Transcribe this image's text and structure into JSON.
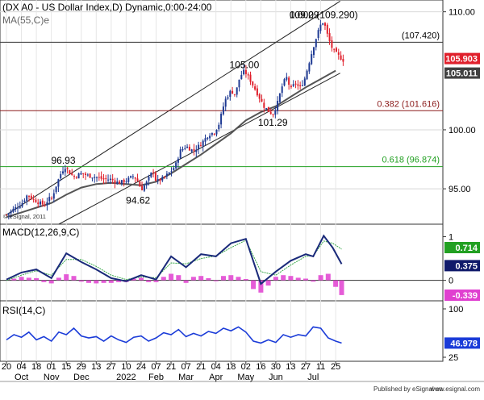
{
  "header": {
    "title": "(DX A0 - US Dollar Index,D) Dynamic,0:00-24:00",
    "ma_label": "MA(55,C)e",
    "copyright": "© eSignal, 2011"
  },
  "footer": {
    "published": "Published by eSignal on",
    "site": "www.esignal.com"
  },
  "colors": {
    "candle_up": "#1f3a93",
    "candle_down": "#e0202c",
    "ma": "#555555",
    "macd": "#1a2a7a",
    "signal": "#3aa84a",
    "histogram": "#e040d0",
    "rsi": "#1a3bd8",
    "fib_red": "#8b1a1a",
    "fib_green": "#22a022",
    "badge_red": "#e0202c",
    "badge_dark": "#404040",
    "badge_navy": "#101a6a",
    "badge_green": "#22a022",
    "badge_pink": "#e040d0",
    "badge_blue": "#1a3bd8"
  },
  "chart_data": [
    {
      "type": "candlestick",
      "title": "(DX A0 - US Dollar Index,D) Dynamic,0:00-24:00",
      "ylim": [
        92,
        111
      ],
      "y_ticks": [
        95,
        100,
        110
      ],
      "x_tick_days": [
        "20",
        "04",
        "18",
        "01",
        "15",
        "29",
        "13",
        "27",
        "10",
        "24",
        "07",
        "21",
        "07",
        "21",
        "04",
        "18",
        "02",
        "16",
        "30",
        "13",
        "27",
        "11",
        "25"
      ],
      "x_month_labels": [
        {
          "label": "Oct",
          "at": 1
        },
        {
          "label": "Nov",
          "at": 3
        },
        {
          "label": "Dec",
          "at": 5
        },
        {
          "label": "2022",
          "at": 8
        },
        {
          "label": "Feb",
          "at": 10
        },
        {
          "label": "Mar",
          "at": 12
        },
        {
          "label": "Apr",
          "at": 14
        },
        {
          "label": "May",
          "at": 16
        },
        {
          "label": "Jun",
          "at": 18
        },
        {
          "label": "Jul",
          "at": 20.5
        }
      ],
      "series": [
        {
          "name": "US Dollar Index",
          "type": "candle"
        },
        {
          "name": "MA(55,C)e",
          "type": "line"
        }
      ],
      "close_path": [
        [
          0,
          92.8
        ],
        [
          0.5,
          93.3
        ],
        [
          1,
          93.7
        ],
        [
          1.4,
          94.5
        ],
        [
          1.8,
          94.1
        ],
        [
          2.2,
          93.8
        ],
        [
          2.6,
          93.6
        ],
        [
          2.8,
          94.2
        ],
        [
          3,
          94.1
        ],
        [
          3.3,
          95.2
        ],
        [
          3.6,
          96.2
        ],
        [
          3.9,
          96.9
        ],
        [
          4.2,
          96.4
        ],
        [
          4.5,
          96.0
        ],
        [
          5,
          96.3
        ],
        [
          5.5,
          96.1
        ],
        [
          6,
          96.0
        ],
        [
          6.5,
          95.8
        ],
        [
          7,
          95.8
        ],
        [
          7.5,
          95.5
        ],
        [
          8,
          95.7
        ],
        [
          8.5,
          96.1
        ],
        [
          8.8,
          95.6
        ],
        [
          9,
          94.9
        ],
        [
          9.4,
          95.6
        ],
        [
          9.8,
          96.6
        ],
        [
          10,
          95.6
        ],
        [
          10.5,
          95.9
        ],
        [
          11,
          96.5
        ],
        [
          11.3,
          97.0
        ],
        [
          11.6,
          98.2
        ],
        [
          12,
          98.6
        ],
        [
          12.5,
          98.2
        ],
        [
          13,
          98.8
        ],
        [
          13.5,
          99.6
        ],
        [
          13.9,
          99.8
        ],
        [
          14.2,
          100.5
        ],
        [
          14.6,
          102.5
        ],
        [
          15,
          103.3
        ],
        [
          15.3,
          103.0
        ],
        [
          15.6,
          104.5
        ],
        [
          15.9,
          105.0
        ],
        [
          16.3,
          104.2
        ],
        [
          16.8,
          103.0
        ],
        [
          17.2,
          102.0
        ],
        [
          17.5,
          101.6
        ],
        [
          17.8,
          101.3
        ],
        [
          18.1,
          102.2
        ],
        [
          18.4,
          103.6
        ],
        [
          18.7,
          104.5
        ],
        [
          19,
          103.4
        ],
        [
          19.3,
          104.0
        ],
        [
          19.6,
          103.5
        ],
        [
          19.9,
          104.2
        ],
        [
          20.2,
          105.6
        ],
        [
          20.5,
          107.0
        ],
        [
          20.8,
          108.2
        ],
        [
          21,
          108.9
        ],
        [
          21.2,
          109.2
        ],
        [
          21.5,
          107.8
        ],
        [
          21.8,
          106.8
        ],
        [
          22,
          106.5
        ],
        [
          22.5,
          105.9
        ]
      ],
      "ma_path": [
        [
          0,
          92.6
        ],
        [
          1,
          93.0
        ],
        [
          2,
          93.4
        ],
        [
          3,
          93.8
        ],
        [
          4,
          94.5
        ],
        [
          5,
          95.1
        ],
        [
          6,
          95.4
        ],
        [
          7,
          95.5
        ],
        [
          8,
          95.4
        ],
        [
          9,
          95.3
        ],
        [
          10,
          95.6
        ],
        [
          11,
          96.3
        ],
        [
          12,
          97.1
        ],
        [
          13,
          97.9
        ],
        [
          14,
          98.8
        ],
        [
          15,
          99.7
        ],
        [
          16,
          100.8
        ],
        [
          17,
          101.5
        ],
        [
          18,
          102.0
        ],
        [
          19,
          102.8
        ],
        [
          20,
          103.6
        ],
        [
          21,
          104.3
        ],
        [
          22,
          105.011
        ]
      ],
      "trend_channel": [
        {
          "from": [
            0,
            92.8
          ],
          "to": [
            22.3,
            110.9
          ]
        },
        {
          "from": [
            3.5,
            92.0
          ],
          "to": [
            22.3,
            104.8
          ]
        }
      ],
      "horizontal_lines": [
        {
          "label": "(107.420)",
          "value": 107.42,
          "color": "#333333"
        },
        {
          "label": "0.382 (101.616)",
          "value": 101.616,
          "color": "#8b1a1a"
        },
        {
          "label": "0.618 (96.874)",
          "value": 96.874,
          "color": "#22a022"
        }
      ],
      "annotations": [
        {
          "text": "109.29",
          "at": [
            19.9,
            109.75
          ]
        },
        {
          "text": "0.000 (109.290)",
          "at": [
            21.2,
            109.75
          ]
        },
        {
          "text": "105.00",
          "at": [
            15.9,
            105.5
          ]
        },
        {
          "text": "101.29",
          "at": [
            17.8,
            100.6
          ]
        },
        {
          "text": "96.93",
          "at": [
            3.8,
            97.4
          ]
        },
        {
          "text": "94.62",
          "at": [
            8.8,
            94.0
          ]
        }
      ],
      "last_values": [
        {
          "label": "105.903",
          "value": 105.903,
          "color": "#e0202c"
        },
        {
          "label": "105.011",
          "value": 105.011,
          "color": "#404040"
        }
      ]
    },
    {
      "type": "line",
      "title": "MACD(12,26,9,C)",
      "ylim": [
        -0.45,
        1.25
      ],
      "y_ticks": [
        -0.339,
        0,
        1
      ],
      "tick_labels": [
        "0",
        "1"
      ],
      "series": [
        {
          "name": "MACD",
          "path": [
            [
              0,
              0.02
            ],
            [
              1,
              0.18
            ],
            [
              2,
              0.25
            ],
            [
              3,
              0.05
            ],
            [
              4,
              0.62
            ],
            [
              5,
              0.42
            ],
            [
              6,
              0.25
            ],
            [
              7,
              0.05
            ],
            [
              8,
              -0.02
            ],
            [
              9,
              0.12
            ],
            [
              10,
              0.02
            ],
            [
              11,
              0.55
            ],
            [
              12,
              0.3
            ],
            [
              13,
              0.6
            ],
            [
              14,
              0.55
            ],
            [
              15,
              0.85
            ],
            [
              16,
              0.95
            ],
            [
              17,
              -0.08
            ],
            [
              18,
              0.2
            ],
            [
              19,
              0.45
            ],
            [
              20,
              0.6
            ],
            [
              20.5,
              0.55
            ],
            [
              21.2,
              1.02
            ],
            [
              21.8,
              0.75
            ],
            [
              22.4,
              0.375
            ]
          ]
        },
        {
          "name": "Signal",
          "path": [
            [
              0,
              0.0
            ],
            [
              1,
              0.12
            ],
            [
              2,
              0.22
            ],
            [
              3,
              0.12
            ],
            [
              4,
              0.48
            ],
            [
              5,
              0.48
            ],
            [
              6,
              0.32
            ],
            [
              7,
              0.12
            ],
            [
              8,
              0.02
            ],
            [
              9,
              0.08
            ],
            [
              10,
              0.06
            ],
            [
              11,
              0.4
            ],
            [
              12,
              0.38
            ],
            [
              13,
              0.5
            ],
            [
              14,
              0.56
            ],
            [
              15,
              0.75
            ],
            [
              16,
              0.92
            ],
            [
              17,
              0.2
            ],
            [
              18,
              0.12
            ],
            [
              19,
              0.35
            ],
            [
              20,
              0.55
            ],
            [
              20.5,
              0.56
            ],
            [
              21.2,
              0.9
            ],
            [
              21.8,
              0.85
            ],
            [
              22.4,
              0.714
            ]
          ]
        },
        {
          "name": "Histogram",
          "bars": [
            [
              0.5,
              0.04
            ],
            [
              1.0,
              0.08
            ],
            [
              1.5,
              0.06
            ],
            [
              2.0,
              0.05
            ],
            [
              2.5,
              -0.04
            ],
            [
              3.0,
              -0.07
            ],
            [
              3.5,
              0.06
            ],
            [
              4.0,
              0.14
            ],
            [
              4.5,
              0.1
            ],
            [
              5.0,
              -0.03
            ],
            [
              5.5,
              -0.06
            ],
            [
              6.0,
              -0.07
            ],
            [
              6.5,
              -0.06
            ],
            [
              7.0,
              -0.06
            ],
            [
              7.5,
              -0.04
            ],
            [
              8.0,
              -0.04
            ],
            [
              8.5,
              0.04
            ],
            [
              9.0,
              0.06
            ],
            [
              9.5,
              -0.04
            ],
            [
              10.0,
              -0.04
            ],
            [
              10.5,
              0.08
            ],
            [
              11.0,
              0.15
            ],
            [
              11.5,
              0.12
            ],
            [
              12.0,
              -0.06
            ],
            [
              12.5,
              0.08
            ],
            [
              13.0,
              0.1
            ],
            [
              13.5,
              0.05
            ],
            [
              14.0,
              -0.02
            ],
            [
              14.5,
              0.1
            ],
            [
              15.0,
              0.12
            ],
            [
              15.5,
              0.08
            ],
            [
              16.0,
              0.03
            ],
            [
              16.5,
              -0.2
            ],
            [
              17.0,
              -0.28
            ],
            [
              17.5,
              -0.12
            ],
            [
              18.0,
              0.08
            ],
            [
              18.5,
              0.12
            ],
            [
              19.0,
              0.1
            ],
            [
              19.5,
              0.06
            ],
            [
              20.0,
              0.04
            ],
            [
              20.5,
              -0.03
            ],
            [
              21.0,
              0.12
            ],
            [
              21.5,
              0.15
            ],
            [
              22.0,
              -0.15
            ],
            [
              22.4,
              -0.339
            ]
          ]
        }
      ],
      "last_values": [
        {
          "label": "0.714",
          "value": 0.714,
          "color": "#22a022"
        },
        {
          "label": "0.375",
          "value": 0.375,
          "color": "#101a6a"
        },
        {
          "label": "-0.339",
          "value": -0.339,
          "color": "#e040d0"
        }
      ]
    },
    {
      "type": "line",
      "title": "RSI(14,C)",
      "ylim": [
        20,
        110
      ],
      "y_ticks": [
        25,
        100
      ],
      "tick_labels": [
        "25",
        "100"
      ],
      "series": [
        {
          "name": "RSI",
          "path": [
            [
              0,
              52
            ],
            [
              0.5,
              60
            ],
            [
              1,
              56
            ],
            [
              1.5,
              64
            ],
            [
              2,
              52
            ],
            [
              2.5,
              57
            ],
            [
              3,
              50
            ],
            [
              3.5,
              64
            ],
            [
              4,
              60
            ],
            [
              4.5,
              70
            ],
            [
              5,
              58
            ],
            [
              5.5,
              55
            ],
            [
              6,
              57
            ],
            [
              6.5,
              50
            ],
            [
              7,
              58
            ],
            [
              7.5,
              52
            ],
            [
              8,
              48
            ],
            [
              8.5,
              56
            ],
            [
              9,
              58
            ],
            [
              9.5,
              50
            ],
            [
              10,
              55
            ],
            [
              10.5,
              63
            ],
            [
              11,
              60
            ],
            [
              11.5,
              68
            ],
            [
              12,
              57
            ],
            [
              12.5,
              62
            ],
            [
              13,
              58
            ],
            [
              13.5,
              65
            ],
            [
              14,
              62
            ],
            [
              14.5,
              70
            ],
            [
              15,
              66
            ],
            [
              15.5,
              72
            ],
            [
              16,
              64
            ],
            [
              16.5,
              50
            ],
            [
              17,
              47
            ],
            [
              17.5,
              52
            ],
            [
              18,
              48
            ],
            [
              18.5,
              60
            ],
            [
              19,
              56
            ],
            [
              19.5,
              60
            ],
            [
              20,
              58
            ],
            [
              20.5,
              72
            ],
            [
              21,
              70
            ],
            [
              21.5,
              55
            ],
            [
              22,
              50
            ],
            [
              22.4,
              46.978
            ]
          ]
        }
      ],
      "last_values": [
        {
          "label": "46.978",
          "value": 46.978,
          "color": "#1a3bd8"
        }
      ]
    }
  ]
}
